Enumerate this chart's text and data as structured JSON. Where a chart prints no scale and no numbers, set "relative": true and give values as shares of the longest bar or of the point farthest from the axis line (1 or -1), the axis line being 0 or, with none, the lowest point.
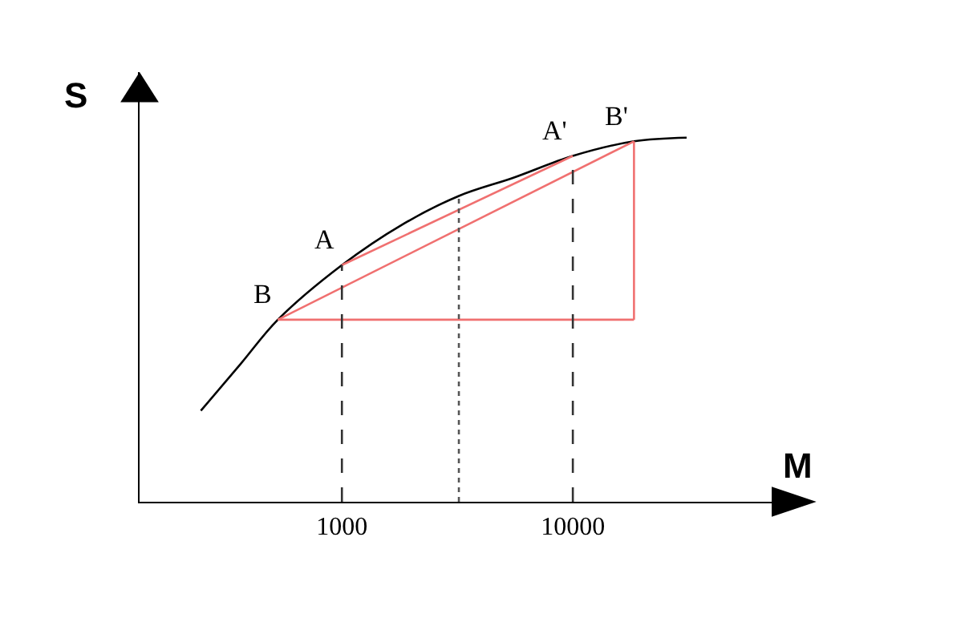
{
  "chart_data": {
    "type": "line",
    "relative": true,
    "xlabel": "M",
    "ylabel": "S",
    "log": "x",
    "marker": "none",
    "tick_labels": "x",
    "xlim": [
      133,
      77400
    ],
    "xticks": [
      1000,
      10000
    ],
    "series": [
      {
        "color": "#000000",
        "line_style": "solid",
        "x": [
          245,
          366,
          528,
          1000,
          1810,
          3210,
          5530,
          10000,
          18400,
          31100
        ],
        "values": [
          0.25,
          0.38,
          0.5,
          0.65,
          0.76,
          0.84,
          0.89,
          0.95,
          0.99,
          1.0
        ]
      },
      {
        "color": "#f07070",
        "line_style": "solid",
        "x": [
          528,
          18400
        ],
        "values": [
          0.5,
          0.5
        ]
      },
      {
        "color": "#f07070",
        "line_style": "solid",
        "x": [
          18400,
          18400
        ],
        "values": [
          0.5,
          0.99
        ]
      },
      {
        "color": "#f07070",
        "line_style": "solid",
        "x": [
          528,
          18400
        ],
        "values": [
          0.5,
          0.99
        ]
      },
      {
        "color": "#f07070",
        "line_style": "solid",
        "x": [
          1000,
          10000
        ],
        "values": [
          0.65,
          0.95
        ]
      },
      {
        "color": "#333333",
        "line_style": "dashed",
        "x": [
          1000,
          1000
        ],
        "values": [
          0,
          0.65
        ]
      },
      {
        "color": "#333333",
        "line_style": "dashed",
        "x": [
          10000,
          10000
        ],
        "values": [
          0,
          0.95
        ]
      },
      {
        "color": "#555555",
        "line_style": "dotted",
        "x": [
          3210,
          3210
        ],
        "values": [
          0,
          0.84
        ]
      }
    ],
    "annotations": [
      {
        "text": "A",
        "x": 1000,
        "y": 0.65
      },
      {
        "text": "B",
        "x": 528,
        "y": 0.5
      },
      {
        "text": "A'",
        "x": 10000,
        "y": 0.95
      },
      {
        "text": "B'",
        "x": 18400,
        "y": 0.99
      }
    ]
  }
}
